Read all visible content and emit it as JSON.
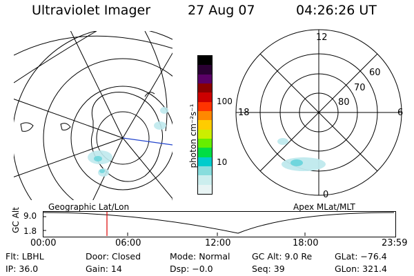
{
  "header": {
    "title": "Ultraviolet Imager",
    "date": "27 Aug 07",
    "time": "04:26:26 UT"
  },
  "colorbar": {
    "unit_label": "photon cm⁻²s⁻¹",
    "ticks": [
      "100",
      "10"
    ],
    "colors": [
      "#000000",
      "#2a0033",
      "#5a0066",
      "#8a0000",
      "#cc0000",
      "#ff3300",
      "#ff8800",
      "#ffcc00",
      "#ccee00",
      "#66ee00",
      "#00dd44",
      "#00cccc",
      "#88dddd",
      "#cceeee",
      "#e8f4f4"
    ]
  },
  "geo_map": {
    "label": "Geographic Lat/Lon"
  },
  "mag_plot": {
    "label": "Apex MLat/MLT",
    "mlt_labels": {
      "top": "12",
      "left": "18",
      "right": "6",
      "bottom": "0"
    },
    "lat_labels": [
      "60",
      "70",
      "80"
    ]
  },
  "alt_strip": {
    "ylabel": "GC Alt",
    "y_ticks": [
      "9.0",
      "1.8"
    ],
    "x_ticks": [
      "00:00",
      "06:00",
      "12:00",
      "18:00",
      "23:59"
    ],
    "marker_color": "#dd0000"
  },
  "footer": {
    "flt": "Flt: LBHL",
    "door": "Door: Closed",
    "mode": "Mode: Normal",
    "gcalt": "GC Alt: 9.0 Re",
    "glat": "GLat: −76.4",
    "ip": "IP: 36.0",
    "gain": "Gain: 14",
    "dsp": "Dsp:    −0.0",
    "seq": "Seq: 39",
    "glon": "GLon: 321.4"
  }
}
